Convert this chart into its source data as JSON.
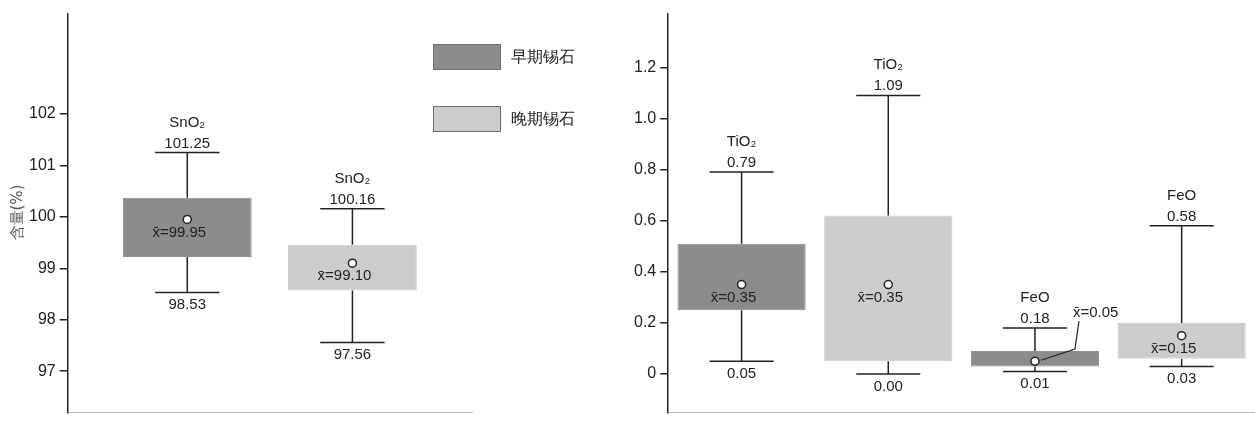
{
  "chart_data": [
    {
      "type": "box",
      "categories": [
        "SnO₂"
      ],
      "ylabel": "含量(%)",
      "ylim": [
        96.2,
        103.95
      ],
      "yticks": [
        97,
        98,
        99,
        100,
        101,
        102
      ],
      "legend": "top right",
      "tick_labels": "y",
      "grid": false,
      "series": [
        {
          "name": "早期锡石",
          "color": "#8c8c8c",
          "boxes": [
            {
              "low": 98.53,
              "q1": 99.22,
              "q3": 100.37,
              "high": 101.25,
              "mean": 99.95
            }
          ]
        },
        {
          "name": "晚期锡石",
          "color": "#cccccc",
          "boxes": [
            {
              "low": 97.56,
              "q1": 98.57,
              "q3": 99.46,
              "high": 100.16,
              "mean": 99.1
            }
          ]
        }
      ],
      "annotations": [
        "101.25",
        "98.53",
        "x̄=99.95",
        "100.16",
        "97.56",
        "x̄=99.10"
      ]
    },
    {
      "type": "box",
      "categories": [
        "TiO₂",
        "FeO"
      ],
      "ylim": [
        -0.15,
        1.41
      ],
      "yticks": [
        0,
        0.2,
        0.4,
        0.6,
        0.8,
        {
          "value": 1,
          "label": "1.0"
        },
        1.2
      ],
      "tick_labels": "y",
      "grid": false,
      "series": [
        {
          "color": "#8c8c8c",
          "boxes": [
            {
              "low": 0.05,
              "q1": 0.25,
              "q3": 0.51,
              "high": 0.79,
              "mean": 0.35
            },
            {
              "low": 0.01,
              "q1": 0.03,
              "q3": 0.09,
              "high": 0.18,
              "mean": 0.05
            }
          ]
        },
        {
          "color": "#cccccc",
          "boxes": [
            {
              "low": 0,
              "q1": 0.05,
              "q3": 0.62,
              "high": 1.09,
              "mean": 0.35
            },
            {
              "low": 0.03,
              "q1": 0.06,
              "q3": 0.2,
              "high": 0.58,
              "mean": 0.15
            }
          ]
        }
      ],
      "annotations": [
        "0.79",
        "0.05",
        "x̄=0.35",
        "1.09",
        "0.00",
        "x̄=0.35",
        "0.18",
        "0.01",
        "x̄=0.05",
        "0.58",
        "0.03",
        "x̄=0.15"
      ]
    }
  ]
}
